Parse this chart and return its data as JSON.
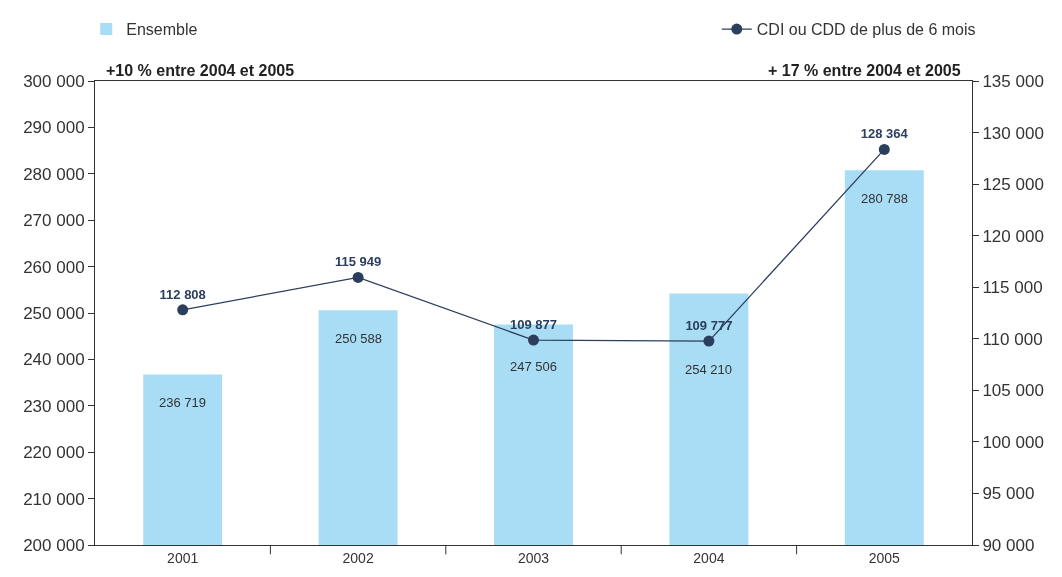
{
  "chart_data": {
    "type": "bar",
    "categories": [
      "2001",
      "2002",
      "2003",
      "2004",
      "2005"
    ],
    "series": [
      {
        "name": "Ensemble",
        "color": "#a9dcf5",
        "values": [
          236719,
          250588,
          247506,
          254210,
          280788
        ],
        "value_labels": [
          "236 719",
          "250 588",
          "247 506",
          "254 210",
          "280 788"
        ]
      },
      {
        "name": "CDI ou CDD de plus de 6 mois",
        "type": "line",
        "axis": "y2",
        "color": "#2c3e5e",
        "values": [
          112808,
          115949,
          109877,
          109777,
          128364
        ],
        "value_labels": [
          "112 808",
          "115 949",
          "109 877",
          "109 777",
          "128 364"
        ]
      }
    ],
    "annotations": [
      "+10 % entre 2004 et 2005",
      "+ 17 % entre 2004 et 2005"
    ],
    "ylim": [
      200000,
      300000
    ],
    "yticks": [
      {
        "value": 200000,
        "label": "200 000"
      },
      {
        "value": 210000,
        "label": "210 000"
      },
      {
        "value": 220000,
        "label": "220 000"
      },
      {
        "value": 230000,
        "label": "230 000"
      },
      {
        "value": 240000,
        "label": "240 000"
      },
      {
        "value": 250000,
        "label": "250 000"
      },
      {
        "value": 260000,
        "label": "260 000"
      },
      {
        "value": 270000,
        "label": "270 000"
      },
      {
        "value": 280000,
        "label": "280 000"
      },
      {
        "value": 290000,
        "label": "290 000"
      },
      {
        "value": 300000,
        "label": "300 000"
      }
    ],
    "y2lim": [
      90000,
      135000
    ],
    "y2ticks": [
      {
        "value": 90000,
        "label": "90 000"
      },
      {
        "value": 95000,
        "label": "95 000"
      },
      {
        "value": 100000,
        "label": "100 000"
      },
      {
        "value": 105000,
        "label": "105 000"
      },
      {
        "value": 110000,
        "label": "110 000"
      },
      {
        "value": 115000,
        "label": "115 000"
      },
      {
        "value": 120000,
        "label": "120 000"
      },
      {
        "value": 125000,
        "label": "125 000"
      },
      {
        "value": 130000,
        "label": "130 000"
      },
      {
        "value": 135000,
        "label": "135 000"
      }
    ],
    "grid": false,
    "legend": "top",
    "marker": "circle",
    "line_style": "solid"
  }
}
